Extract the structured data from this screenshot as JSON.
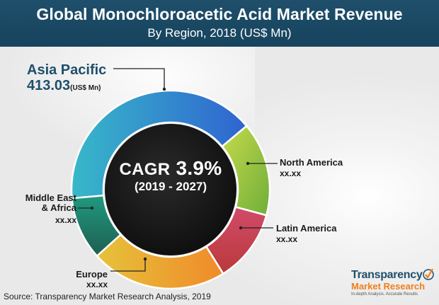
{
  "header": {
    "title": "Global Monochloroacetic Acid Market Revenue",
    "subtitle": "By Region, 2018 (US$ Mn)"
  },
  "chart_data": {
    "type": "pie",
    "categories": [
      "Asia Pacific",
      "North America",
      "Latin America",
      "Europe",
      "Middle East & Africa"
    ],
    "values": [
      413.03,
      null,
      null,
      null,
      null
    ],
    "value_labels": [
      "413.03",
      "xx.xx",
      "xx.xx",
      "xx.xx",
      "xx.xx"
    ],
    "value_unit_label": "(US$ Mn)",
    "colors": [
      "#2f7fd0",
      "#8fbf3a",
      "#c93f55",
      "#f0a22a",
      "#1f8c6e"
    ],
    "center": {
      "cagr_word": "CAGR",
      "cagr_value": "3.9%",
      "period": "(2019 - 2027)"
    }
  },
  "labels": {
    "asia_pacific": {
      "name": "Asia Pacific",
      "value": "413.03",
      "unit": "(US$ Mn)"
    },
    "north_america": {
      "name": "North America",
      "value": "xx.xx"
    },
    "latin_america": {
      "name": "Latin America",
      "value": "xx.xx"
    },
    "middle_east_africa": {
      "name_line1": "Middle East",
      "name_line2": "& Africa",
      "value": "xx.xx"
    },
    "europe": {
      "name": "Europe",
      "value": "xx.xx"
    }
  },
  "source": "Source: Transparency Market Research Analysis, 2019",
  "logo": {
    "name": "Transparency",
    "sub": "Market Research",
    "tagline": "In-depth Analysis. Accurate Results"
  }
}
